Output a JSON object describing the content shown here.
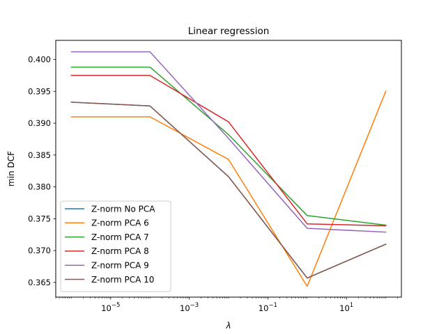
{
  "chart_data": {
    "type": "line",
    "title": "Linear regression",
    "xlabel": "λ",
    "ylabel": "min DCF",
    "xscale": "log",
    "x": [
      1e-06,
      0.0001,
      0.01,
      1,
      100
    ],
    "xlim": [
      4e-07,
      250
    ],
    "ylim": [
      0.3627,
      0.403
    ],
    "x_ticks": [
      {
        "value": 1e-05,
        "base": "10",
        "exp": "−5"
      },
      {
        "value": 0.001,
        "base": "10",
        "exp": "−3"
      },
      {
        "value": 0.1,
        "base": "10",
        "exp": "−1"
      },
      {
        "value": 10,
        "base": "10",
        "exp": "1"
      }
    ],
    "y_ticks": [
      {
        "value": 0.365,
        "label": "0.365"
      },
      {
        "value": 0.37,
        "label": "0.370"
      },
      {
        "value": 0.375,
        "label": "0.375"
      },
      {
        "value": 0.38,
        "label": "0.380"
      },
      {
        "value": 0.385,
        "label": "0.385"
      },
      {
        "value": 0.39,
        "label": "0.390"
      },
      {
        "value": 0.395,
        "label": "0.395"
      },
      {
        "value": 0.4,
        "label": "0.400"
      }
    ],
    "grid": false,
    "legend_position": "lower-left",
    "series": [
      {
        "name": "Z-norm No PCA",
        "color": "#1f77b4",
        "values": [
          0.3933,
          0.3927,
          0.3816,
          0.3657,
          0.371
        ]
      },
      {
        "name": "Z-norm PCA 6",
        "color": "#ff7f0e",
        "values": [
          0.391,
          0.391,
          0.3843,
          0.3644,
          0.395
        ]
      },
      {
        "name": "Z-norm PCA 7",
        "color": "#2ca02c",
        "values": [
          0.3988,
          0.3988,
          0.3882,
          0.3755,
          0.374
        ]
      },
      {
        "name": "Z-norm PCA 8",
        "color": "#d62728",
        "values": [
          0.3975,
          0.3975,
          0.3902,
          0.3742,
          0.3739
        ]
      },
      {
        "name": "Z-norm PCA 9",
        "color": "#9467bd",
        "values": [
          0.4012,
          0.4012,
          0.3876,
          0.3735,
          0.3729
        ]
      },
      {
        "name": "Z-norm PCA 10",
        "color": "#8c564b",
        "values": [
          0.3933,
          0.3927,
          0.3816,
          0.3657,
          0.371
        ]
      }
    ]
  }
}
